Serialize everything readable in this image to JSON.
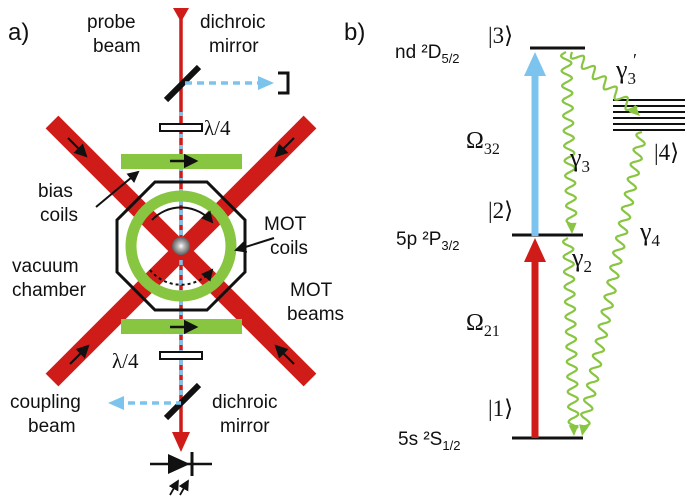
{
  "panel_a": {
    "label": "a)",
    "probe_beam": [
      "probe",
      "beam"
    ],
    "dichroic_mirror_top": [
      "dichroic",
      "mirror"
    ],
    "lambda4_top": "λ/4",
    "bias_coils": [
      "bias",
      "coils"
    ],
    "mot_coils": [
      "MOT",
      "coils"
    ],
    "vacuum_chamber": [
      "vacuum",
      "chamber"
    ],
    "mot_beams": [
      "MOT",
      "beams"
    ],
    "lambda4_bottom": "λ/4",
    "coupling_beam": [
      "coupling",
      "beam"
    ],
    "dichroic_mirror_bottom": [
      "dichroic",
      "mirror"
    ]
  },
  "panel_b": {
    "label": "b)",
    "levels": {
      "nd": "nd ²D",
      "nd_sub": "5/2",
      "p": "5p ²P",
      "p_sub": "3/2",
      "s": "5s ²S",
      "s_sub": "1/2"
    },
    "kets": {
      "k1": "|1⟩",
      "k2": "|2⟩",
      "k3": "|3⟩",
      "k4": "|4⟩"
    },
    "omega32": "Ω",
    "omega32_sub": "32",
    "omega21": "Ω",
    "omega21_sub": "21",
    "gamma3": "γ",
    "gamma3_sub": "3",
    "gamma3p": "γ",
    "gamma3p_sub": "3",
    "gamma3p_prime": "′",
    "gamma2": "γ",
    "gamma2_sub": "2",
    "gamma4": "γ",
    "gamma4_sub": "4"
  },
  "colors": {
    "red_beam": "#d01c18",
    "blue_beam": "#7cc4ee",
    "green": "#88c540",
    "black": "#111111",
    "gray": "#9a9a9a"
  }
}
